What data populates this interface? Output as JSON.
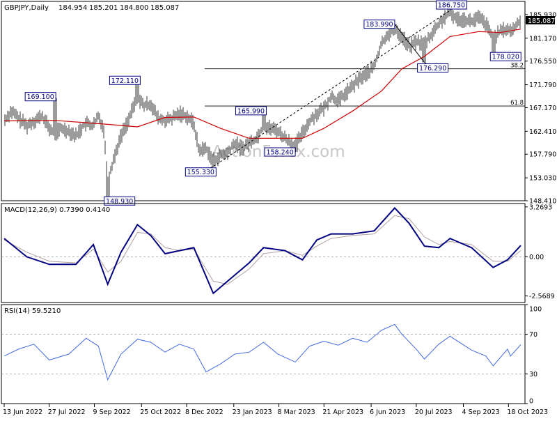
{
  "chart_data": [
    {
      "type": "line",
      "subtype": "ohlc",
      "title": "GBPJPY,Daily",
      "ohlc_readout": [
        "184.954",
        "185.201",
        "184.800",
        "185.087"
      ],
      "last_price": "185.087",
      "watermark": "ActionForex.com",
      "y_ticks": [
        "185.930",
        "181.170",
        "176.550",
        "171.790",
        "167.170",
        "162.410",
        "157.790",
        "153.030",
        "148.410"
      ],
      "ylim": [
        148.41,
        188.3
      ],
      "fib_levels": [
        {
          "label": "38.2",
          "value": 175.0
        },
        {
          "label": "61.8",
          "value": 167.5
        }
      ],
      "annotations": [
        {
          "label": "169.100",
          "date": "2022-08-01",
          "value": 169.1
        },
        {
          "label": "172.110",
          "date": "2022-10-21",
          "value": 172.11
        },
        {
          "label": "148.930",
          "date": "2022-09-22",
          "value": 148.93
        },
        {
          "label": "155.330",
          "date": "2023-01-03",
          "value": 155.33
        },
        {
          "label": "165.990",
          "date": "2023-02-21",
          "value": 165.99
        },
        {
          "label": "158.240",
          "date": "2023-03-24",
          "value": 158.24
        },
        {
          "label": "183.990",
          "date": "2023-06-29",
          "value": 183.99
        },
        {
          "label": "176.290",
          "date": "2023-07-28",
          "value": 176.29
        },
        {
          "label": "186.750",
          "date": "2023-08-22",
          "value": 186.75
        },
        {
          "label": "178.020",
          "date": "2023-10-03",
          "value": 178.02
        }
      ],
      "close_path": [
        [
          "2022-06-13",
          164.5
        ],
        [
          "2022-06-20",
          166.5
        ],
        [
          "2022-06-27",
          165.0
        ],
        [
          "2022-07-05",
          163.5
        ],
        [
          "2022-07-12",
          164.5
        ],
        [
          "2022-07-20",
          165.5
        ],
        [
          "2022-07-27",
          163.0
        ],
        [
          "2022-08-01",
          162.0
        ],
        [
          "2022-08-08",
          163.0
        ],
        [
          "2022-08-15",
          162.5
        ],
        [
          "2022-08-22",
          161.5
        ],
        [
          "2022-08-29",
          163.5
        ],
        [
          "2022-09-01",
          164.0
        ],
        [
          "2022-09-08",
          163.5
        ],
        [
          "2022-09-13",
          165.5
        ],
        [
          "2022-09-18",
          163.0
        ],
        [
          "2022-09-22",
          152.5
        ],
        [
          "2022-09-28",
          157.0
        ],
        [
          "2022-10-05",
          161.5
        ],
        [
          "2022-10-13",
          165.0
        ],
        [
          "2022-10-21",
          169.5
        ],
        [
          "2022-10-27",
          167.5
        ],
        [
          "2022-11-03",
          168.0
        ],
        [
          "2022-11-10",
          165.0
        ],
        [
          "2022-11-17",
          164.5
        ],
        [
          "2022-11-24",
          165.0
        ],
        [
          "2022-12-01",
          166.0
        ],
        [
          "2022-12-08",
          165.5
        ],
        [
          "2022-12-15",
          164.0
        ],
        [
          "2022-12-20",
          158.5
        ],
        [
          "2022-12-27",
          159.0
        ],
        [
          "2023-01-03",
          156.5
        ],
        [
          "2023-01-10",
          157.5
        ],
        [
          "2023-01-17",
          158.0
        ],
        [
          "2023-01-24",
          160.0
        ],
        [
          "2023-01-31",
          159.0
        ],
        [
          "2023-02-07",
          160.0
        ],
        [
          "2023-02-14",
          161.0
        ],
        [
          "2023-02-21",
          163.5
        ],
        [
          "2023-02-28",
          163.0
        ],
        [
          "2023-03-07",
          162.5
        ],
        [
          "2023-03-14",
          161.0
        ],
        [
          "2023-03-24",
          159.5
        ],
        [
          "2023-03-31",
          162.0
        ],
        [
          "2023-04-07",
          164.5
        ],
        [
          "2023-04-14",
          166.0
        ],
        [
          "2023-04-21",
          167.0
        ],
        [
          "2023-04-28",
          169.5
        ],
        [
          "2023-05-05",
          168.5
        ],
        [
          "2023-05-12",
          170.0
        ],
        [
          "2023-05-19",
          171.5
        ],
        [
          "2023-05-26",
          173.0
        ],
        [
          "2023-06-02",
          174.0
        ],
        [
          "2023-06-09",
          175.5
        ],
        [
          "2023-06-16",
          180.0
        ],
        [
          "2023-06-22",
          182.0
        ],
        [
          "2023-06-29",
          183.0
        ],
        [
          "2023-07-06",
          181.5
        ],
        [
          "2023-07-13",
          179.5
        ],
        [
          "2023-07-20",
          180.5
        ],
        [
          "2023-07-28",
          180.0
        ],
        [
          "2023-08-04",
          182.0
        ],
        [
          "2023-08-11",
          184.0
        ],
        [
          "2023-08-17",
          185.5
        ],
        [
          "2023-08-22",
          186.3
        ],
        [
          "2023-08-29",
          185.0
        ],
        [
          "2023-09-05",
          185.0
        ],
        [
          "2023-09-12",
          184.5
        ],
        [
          "2023-09-19",
          185.3
        ],
        [
          "2023-09-26",
          184.0
        ],
        [
          "2023-10-03",
          181.0
        ],
        [
          "2023-10-10",
          182.5
        ],
        [
          "2023-10-17",
          183.0
        ],
        [
          "2023-10-20",
          182.5
        ],
        [
          "2023-10-25",
          183.5
        ],
        [
          "2023-10-30",
          185.1
        ]
      ],
      "ema": [
        [
          "2022-06-13",
          164.5
        ],
        [
          "2022-08-01",
          164.6
        ],
        [
          "2022-09-22",
          163.8
        ],
        [
          "2022-10-21",
          163.3
        ],
        [
          "2022-11-17",
          165.2
        ],
        [
          "2022-12-15",
          165.3
        ],
        [
          "2023-01-10",
          163.0
        ],
        [
          "2023-02-07",
          161.0
        ],
        [
          "2023-03-07",
          161.0
        ],
        [
          "2023-03-31",
          161.0
        ],
        [
          "2023-04-21",
          163.0
        ],
        [
          "2023-05-19",
          166.5
        ],
        [
          "2023-06-16",
          170.5
        ],
        [
          "2023-07-06",
          175.0
        ],
        [
          "2023-07-28",
          177.5
        ],
        [
          "2023-08-22",
          181.5
        ],
        [
          "2023-09-19",
          182.5
        ],
        [
          "2023-10-10",
          182.3
        ],
        [
          "2023-10-30",
          183.0
        ]
      ],
      "trend_lines": [
        {
          "from": [
            "2023-01-03",
            155.33
          ],
          "to": [
            "2023-08-22",
            186.75
          ],
          "style": "dashed"
        },
        {
          "from": [
            "2023-06-29",
            183.99
          ],
          "to": [
            "2023-07-28",
            176.29
          ],
          "style": "solid"
        }
      ]
    },
    {
      "type": "line",
      "title": "MACD(12,26,9) 0.7390 0.4140",
      "y_ticks": [
        "3.2693",
        "0.00",
        "-2.5689"
      ],
      "ylim": [
        -3.0,
        3.4
      ],
      "series": [
        {
          "values": [
            [
              "2022-06-13",
              1.2
            ],
            [
              "2022-07-05",
              0.0
            ],
            [
              "2022-07-27",
              -0.5
            ],
            [
              "2022-08-22",
              -0.5
            ],
            [
              "2022-09-08",
              0.8
            ],
            [
              "2022-09-22",
              -1.8
            ],
            [
              "2022-10-05",
              0.3
            ],
            [
              "2022-10-21",
              2.1
            ],
            [
              "2022-11-03",
              1.4
            ],
            [
              "2022-11-17",
              0.2
            ],
            [
              "2022-12-01",
              0.4
            ],
            [
              "2022-12-15",
              0.6
            ],
            [
              "2023-01-03",
              -2.4
            ],
            [
              "2023-01-17",
              -1.6
            ],
            [
              "2023-02-07",
              -0.4
            ],
            [
              "2023-02-21",
              0.6
            ],
            [
              "2023-03-14",
              0.4
            ],
            [
              "2023-03-31",
              -0.2
            ],
            [
              "2023-04-14",
              1.1
            ],
            [
              "2023-04-28",
              1.5
            ],
            [
              "2023-05-19",
              1.5
            ],
            [
              "2023-06-09",
              1.7
            ],
            [
              "2023-06-29",
              3.2
            ],
            [
              "2023-07-13",
              2.2
            ],
            [
              "2023-07-28",
              0.7
            ],
            [
              "2023-08-11",
              0.6
            ],
            [
              "2023-08-22",
              1.2
            ],
            [
              "2023-09-12",
              0.6
            ],
            [
              "2023-10-03",
              -0.7
            ],
            [
              "2023-10-17",
              -0.2
            ],
            [
              "2023-10-30",
              0.74
            ]
          ]
        },
        {
          "values": [
            [
              "2022-06-13",
              1.1
            ],
            [
              "2022-07-05",
              0.3
            ],
            [
              "2022-07-27",
              -0.3
            ],
            [
              "2022-08-22",
              -0.4
            ],
            [
              "2022-09-08",
              0.5
            ],
            [
              "2022-09-22",
              -1.0
            ],
            [
              "2022-10-05",
              -0.3
            ],
            [
              "2022-10-21",
              1.6
            ],
            [
              "2022-11-03",
              1.5
            ],
            [
              "2022-11-17",
              0.6
            ],
            [
              "2022-12-01",
              0.4
            ],
            [
              "2022-12-15",
              0.5
            ],
            [
              "2023-01-03",
              -1.6
            ],
            [
              "2023-01-17",
              -1.8
            ],
            [
              "2023-02-07",
              -0.8
            ],
            [
              "2023-02-21",
              0.2
            ],
            [
              "2023-03-14",
              0.4
            ],
            [
              "2023-03-31",
              0.1
            ],
            [
              "2023-04-14",
              0.7
            ],
            [
              "2023-04-28",
              1.2
            ],
            [
              "2023-05-19",
              1.4
            ],
            [
              "2023-06-09",
              1.5
            ],
            [
              "2023-06-29",
              2.7
            ],
            [
              "2023-07-13",
              2.5
            ],
            [
              "2023-07-28",
              1.3
            ],
            [
              "2023-08-11",
              0.8
            ],
            [
              "2023-08-22",
              1.0
            ],
            [
              "2023-09-12",
              0.8
            ],
            [
              "2023-10-03",
              -0.3
            ],
            [
              "2023-10-17",
              -0.3
            ],
            [
              "2023-10-30",
              0.41
            ]
          ]
        }
      ]
    },
    {
      "type": "line",
      "title": "RSI(14) 59.5210",
      "y_ticks": [
        "100",
        "70",
        "30",
        "0"
      ],
      "ylim": [
        0,
        100
      ],
      "levels": [
        70,
        30
      ],
      "series": [
        {
          "values": [
            [
              "2022-06-13",
              48
            ],
            [
              "2022-06-27",
              55
            ],
            [
              "2022-07-12",
              60
            ],
            [
              "2022-07-27",
              44
            ],
            [
              "2022-08-15",
              50
            ],
            [
              "2022-09-01",
              66
            ],
            [
              "2022-09-13",
              58
            ],
            [
              "2022-09-22",
              24
            ],
            [
              "2022-10-05",
              50
            ],
            [
              "2022-10-21",
              65
            ],
            [
              "2022-11-03",
              62
            ],
            [
              "2022-11-17",
              52
            ],
            [
              "2022-12-01",
              60
            ],
            [
              "2022-12-15",
              55
            ],
            [
              "2022-12-27",
              32
            ],
            [
              "2023-01-10",
              40
            ],
            [
              "2023-01-24",
              50
            ],
            [
              "2023-02-07",
              52
            ],
            [
              "2023-02-21",
              62
            ],
            [
              "2023-03-07",
              50
            ],
            [
              "2023-03-24",
              42
            ],
            [
              "2023-04-07",
              58
            ],
            [
              "2023-04-21",
              63
            ],
            [
              "2023-05-05",
              59
            ],
            [
              "2023-05-19",
              66
            ],
            [
              "2023-06-02",
              62
            ],
            [
              "2023-06-16",
              74
            ],
            [
              "2023-06-29",
              80
            ],
            [
              "2023-07-06",
              70
            ],
            [
              "2023-07-20",
              55
            ],
            [
              "2023-07-28",
              45
            ],
            [
              "2023-08-11",
              60
            ],
            [
              "2023-08-22",
              68
            ],
            [
              "2023-09-12",
              54
            ],
            [
              "2023-09-26",
              48
            ],
            [
              "2023-10-03",
              38
            ],
            [
              "2023-10-17",
              55
            ],
            [
              "2023-10-20",
              48
            ],
            [
              "2023-10-30",
              59.5
            ]
          ]
        }
      ]
    }
  ],
  "x_ticks": [
    "13 Jun 2022",
    "27 Jul 2022",
    "9 Sep 2022",
    "25 Oct 2022",
    "8 Dec 2022",
    "23 Jan 2023",
    "8 Mar 2023",
    "21 Apr 2023",
    "6 Jun 2023",
    "20 Jul 2023",
    "4 Sep 2023",
    "18 Oct 2023"
  ],
  "x_tick_dates": [
    "2022-06-13",
    "2022-07-27",
    "2022-09-09",
    "2022-10-25",
    "2022-12-08",
    "2023-01-23",
    "2023-03-08",
    "2023-04-21",
    "2023-06-06",
    "2023-07-20",
    "2023-09-04",
    "2023-10-18"
  ],
  "x_range": [
    "2022-06-13",
    "2023-10-30"
  ],
  "colors": {
    "price": "#3a3a3a",
    "ema": "#cc0000",
    "macd": "#000080",
    "signal": "#b0a0a0",
    "rsi": "#4169e1",
    "border": "#000000",
    "label_border": "#000080",
    "grid": "#999999",
    "watermark": "#c8c8c8"
  }
}
